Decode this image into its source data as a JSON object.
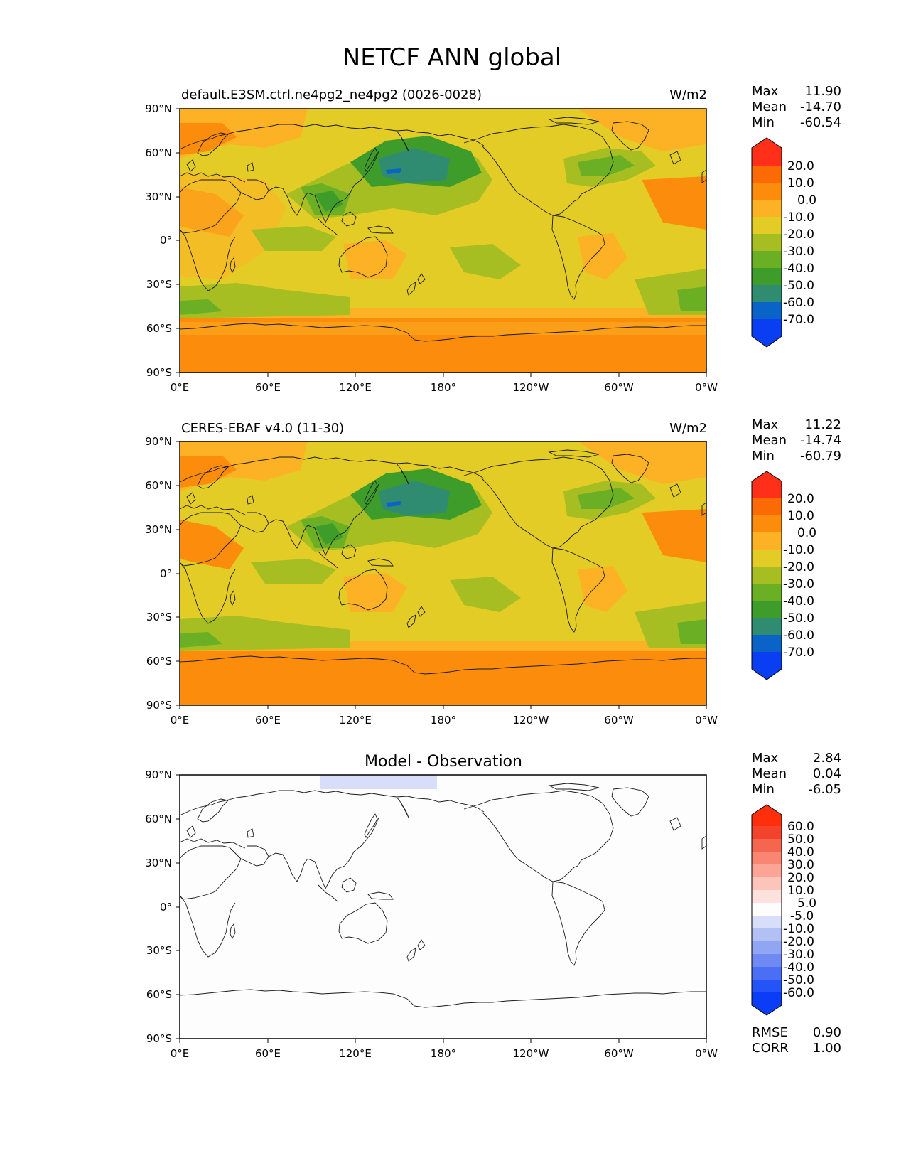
{
  "title": "NETCF ANN global",
  "colors": {
    "test_levels": [
      "#0a3ef2",
      "#0a64c8",
      "#2f8c70",
      "#3e9d2a",
      "#6aaf24",
      "#a6be22",
      "#e4cc26",
      "#fcb224",
      "#fb8c0c",
      "#fc6a06",
      "#ff2f1a"
    ],
    "diff_levels": [
      "#0a3df5",
      "#2453f7",
      "#4a6ff5",
      "#6f8bf3",
      "#90a6f2",
      "#b3c0f4",
      "#d8defa",
      "#fdfdfd",
      "#fde1dc",
      "#fcc4ba",
      "#fca596",
      "#f98672",
      "#f5664f",
      "#f3432d",
      "#ff2f0b"
    ],
    "coast": "#1a1a1a"
  },
  "panels": [
    {
      "id": "test",
      "left_title": "default.E3SM.ctrl.ne4pg2_ne4pg2 (0026-0028)",
      "right_title": "W/m2",
      "center_title": "",
      "stats": [
        {
          "label": "Max",
          "value": "11.90"
        },
        {
          "label": "Mean",
          "value": "-14.70"
        },
        {
          "label": "Min",
          "value": "-60.54"
        }
      ],
      "colorbar_ticks": [
        "20.0",
        "10.0",
        "0.0",
        "-10.0",
        "-20.0",
        "-30.0",
        "-40.0",
        "-50.0",
        "-60.0",
        "-70.0"
      ],
      "extra_stats": []
    },
    {
      "id": "ref",
      "left_title": "CERES-EBAF v4.0 (11-30)",
      "right_title": "W/m2",
      "center_title": "",
      "stats": [
        {
          "label": "Max",
          "value": "11.22"
        },
        {
          "label": "Mean",
          "value": "-14.74"
        },
        {
          "label": "Min",
          "value": "-60.79"
        }
      ],
      "colorbar_ticks": [
        "20.0",
        "10.0",
        "0.0",
        "-10.0",
        "-20.0",
        "-30.0",
        "-40.0",
        "-50.0",
        "-60.0",
        "-70.0"
      ],
      "extra_stats": []
    },
    {
      "id": "diff",
      "left_title": "",
      "right_title": "",
      "center_title": "Model - Observation",
      "stats": [
        {
          "label": "Max",
          "value": "2.84"
        },
        {
          "label": "Mean",
          "value": "0.04"
        },
        {
          "label": "Min",
          "value": "-6.05"
        }
      ],
      "colorbar_ticks": [
        "60.0",
        "50.0",
        "40.0",
        "30.0",
        "20.0",
        "10.0",
        "5.0",
        "-5.0",
        "-10.0",
        "-20.0",
        "-30.0",
        "-40.0",
        "-50.0",
        "-60.0"
      ],
      "extra_stats": [
        {
          "label": "RMSE",
          "value": "0.90"
        },
        {
          "label": "CORR",
          "value": "1.00"
        }
      ]
    }
  ],
  "lat_ticks": [
    "90°N",
    "60°N",
    "30°N",
    "0°",
    "30°S",
    "60°S",
    "90°S"
  ],
  "lon_ticks": [
    "0°E",
    "60°E",
    "120°E",
    "180°",
    "120°W",
    "60°W",
    "0°W"
  ]
}
